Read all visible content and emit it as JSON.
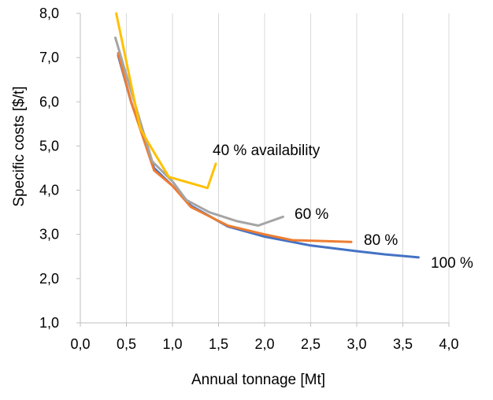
{
  "chart_data": {
    "type": "line",
    "title": "",
    "xlabel": "Annual tonnage [Mt]",
    "ylabel": "Specific costs [$/t]",
    "xlim": [
      0,
      4
    ],
    "ylim": [
      1,
      8
    ],
    "grid": true,
    "x_ticks": [
      "0,0",
      "0,5",
      "1,0",
      "1,5",
      "2,0",
      "2,5",
      "3,0",
      "3,5",
      "4,0"
    ],
    "y_ticks": [
      "1,0",
      "2,0",
      "3,0",
      "4,0",
      "5,0",
      "6,0",
      "7,0",
      "8,0"
    ],
    "series": [
      {
        "name": "100 %",
        "label": "100 %",
        "color": "#4472C4",
        "x": [
          0.41,
          0.55,
          0.8,
          1.0,
          1.2,
          1.6,
          2.0,
          2.5,
          3.0,
          3.3,
          3.67
        ],
        "y": [
          7.05,
          6.0,
          4.5,
          4.1,
          3.65,
          3.18,
          2.95,
          2.75,
          2.62,
          2.55,
          2.48
        ]
      },
      {
        "name": "80 %",
        "label": "80 %",
        "color": "#ED7D31",
        "x": [
          0.41,
          0.55,
          0.8,
          1.0,
          1.2,
          1.6,
          2.0,
          2.3,
          2.94
        ],
        "y": [
          7.1,
          6.0,
          4.45,
          4.1,
          3.62,
          3.2,
          3.0,
          2.87,
          2.83
        ]
      },
      {
        "name": "60 %",
        "label": "60 %",
        "color": "#A5A5A5",
        "x": [
          0.38,
          0.5,
          0.78,
          1.0,
          1.15,
          1.4,
          1.7,
          1.93,
          2.2
        ],
        "y": [
          7.45,
          6.6,
          4.65,
          4.2,
          3.78,
          3.5,
          3.3,
          3.2,
          3.4
        ]
      },
      {
        "name": "40 % availability",
        "label": "40 % availability",
        "color": "#FFC000",
        "x": [
          0.39,
          0.65,
          0.73,
          0.96,
          1.38,
          1.47
        ],
        "y": [
          8.0,
          5.4,
          5.1,
          4.3,
          4.05,
          4.6
        ]
      }
    ]
  }
}
